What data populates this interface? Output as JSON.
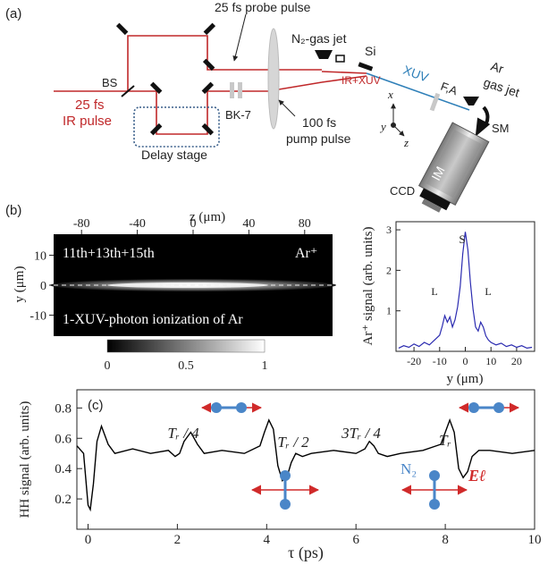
{
  "panel_a": {
    "tag": "(a)",
    "probe_pulse": "25 fs probe pulse",
    "n2_jet": "N₂-gas jet",
    "si": "Si",
    "xuv": "XUV",
    "fa": "F,A",
    "ar_jet_1": "Ar",
    "ar_jet_2": "gas jet",
    "bs": "BS",
    "ir_1": "25 fs",
    "ir_2": "IR pulse",
    "bk7": "BK-7",
    "ir_xuv": "IR+XUV",
    "pump_1": "100 fs",
    "pump_2": "pump pulse",
    "delay": "Delay stage",
    "ax_x": "x",
    "ax_y": "y",
    "ax_z": "z",
    "sm": "SM",
    "im": "IM",
    "ccd": "CCD",
    "colors": {
      "ir": "#c0282a",
      "xuv": "#2e7fb8",
      "delay_box": "#3a5f8a"
    }
  },
  "panel_b": {
    "tag": "(b)",
    "image_label": "11th+13th+15th",
    "ion_label": "Ar⁺",
    "caption": "1-XUV-photon ionization of Ar",
    "colorbar_ticks": [
      "0",
      "0.5",
      "1"
    ],
    "chart_data": {
      "type": "heatmap",
      "xlabel": "z (μm)",
      "ylabel": "y (μm)",
      "xlim": [
        -100,
        100
      ],
      "ylim": [
        -17,
        17
      ],
      "xticks": [
        -80,
        -40,
        0,
        40,
        80
      ],
      "yticks": [
        10,
        0,
        -10
      ],
      "colorbar_range": [
        0,
        1
      ]
    }
  },
  "panel_b_profile": {
    "peak_labels": {
      "s": "S",
      "l_left": "L",
      "l_right": "L"
    },
    "chart_data": {
      "type": "line",
      "xlabel": "y (μm)",
      "ylabel": "Ar⁺ signal (arb. units)",
      "xlim": [
        -27,
        27
      ],
      "ylim": [
        0,
        3.2
      ],
      "xticks": [
        -20,
        -10,
        0,
        10,
        20
      ],
      "yticks": [
        1,
        2,
        3
      ],
      "series": [
        {
          "color": "#2b2bb0",
          "x": [
            -26,
            -24,
            -22,
            -20,
            -18,
            -16,
            -14,
            -12,
            -10,
            -9,
            -8,
            -7,
            -6,
            -5,
            -4,
            -3,
            -2,
            -1,
            0,
            1,
            2,
            3,
            4,
            5,
            6,
            7,
            8,
            9,
            10,
            12,
            14,
            16,
            18,
            20,
            22,
            24,
            26
          ],
          "y": [
            0.08,
            0.14,
            0.1,
            0.18,
            0.12,
            0.22,
            0.16,
            0.28,
            0.4,
            0.62,
            0.88,
            0.72,
            0.85,
            0.6,
            0.78,
            1.1,
            1.6,
            2.4,
            2.95,
            2.5,
            1.7,
            1.05,
            0.6,
            0.5,
            0.72,
            0.6,
            0.38,
            0.28,
            0.22,
            0.16,
            0.2,
            0.12,
            0.16,
            0.1,
            0.14,
            0.08,
            0.1
          ]
        }
      ]
    }
  },
  "panel_c": {
    "tag": "(c)",
    "annotations": [
      "Tᵣ / 4",
      "Tᵣ / 2",
      "3Tᵣ / 4",
      "Tᵣ"
    ],
    "n2_label": "N₂",
    "field_label": "Eℓ",
    "colors": {
      "atom": "#4a86c8",
      "arrow": "#d02a2a"
    },
    "chart_data": {
      "type": "line",
      "xlabel": "τ (ps)",
      "ylabel": "HH signal (arb. units)",
      "xlim": [
        -0.25,
        10
      ],
      "ylim": [
        0,
        0.92
      ],
      "xticks": [
        0,
        2,
        4,
        6,
        8,
        10
      ],
      "yticks": [
        0.2,
        0.4,
        0.6,
        0.8
      ],
      "series": [
        {
          "color": "#000000",
          "x": [
            -0.25,
            -0.1,
            0,
            0.05,
            0.12,
            0.2,
            0.3,
            0.45,
            0.6,
            1,
            1.4,
            1.8,
            1.95,
            2.05,
            2.15,
            2.3,
            2.45,
            2.6,
            3,
            3.5,
            3.85,
            3.95,
            4.05,
            4.15,
            4.25,
            4.35,
            4.45,
            4.55,
            4.65,
            4.8,
            5,
            5.5,
            6,
            6.2,
            6.3,
            6.4,
            6.5,
            6.7,
            7,
            7.5,
            7.9,
            8,
            8.1,
            8.2,
            8.3,
            8.4,
            8.5,
            8.6,
            8.75,
            9,
            9.5,
            10
          ],
          "y": [
            0.55,
            0.5,
            0.16,
            0.13,
            0.3,
            0.58,
            0.68,
            0.56,
            0.5,
            0.53,
            0.5,
            0.52,
            0.48,
            0.5,
            0.58,
            0.64,
            0.56,
            0.5,
            0.52,
            0.5,
            0.55,
            0.64,
            0.72,
            0.66,
            0.42,
            0.32,
            0.34,
            0.44,
            0.5,
            0.48,
            0.5,
            0.52,
            0.5,
            0.53,
            0.58,
            0.55,
            0.5,
            0.48,
            0.5,
            0.52,
            0.56,
            0.64,
            0.72,
            0.64,
            0.4,
            0.34,
            0.38,
            0.48,
            0.52,
            0.52,
            0.5,
            0.52
          ]
        }
      ]
    }
  }
}
